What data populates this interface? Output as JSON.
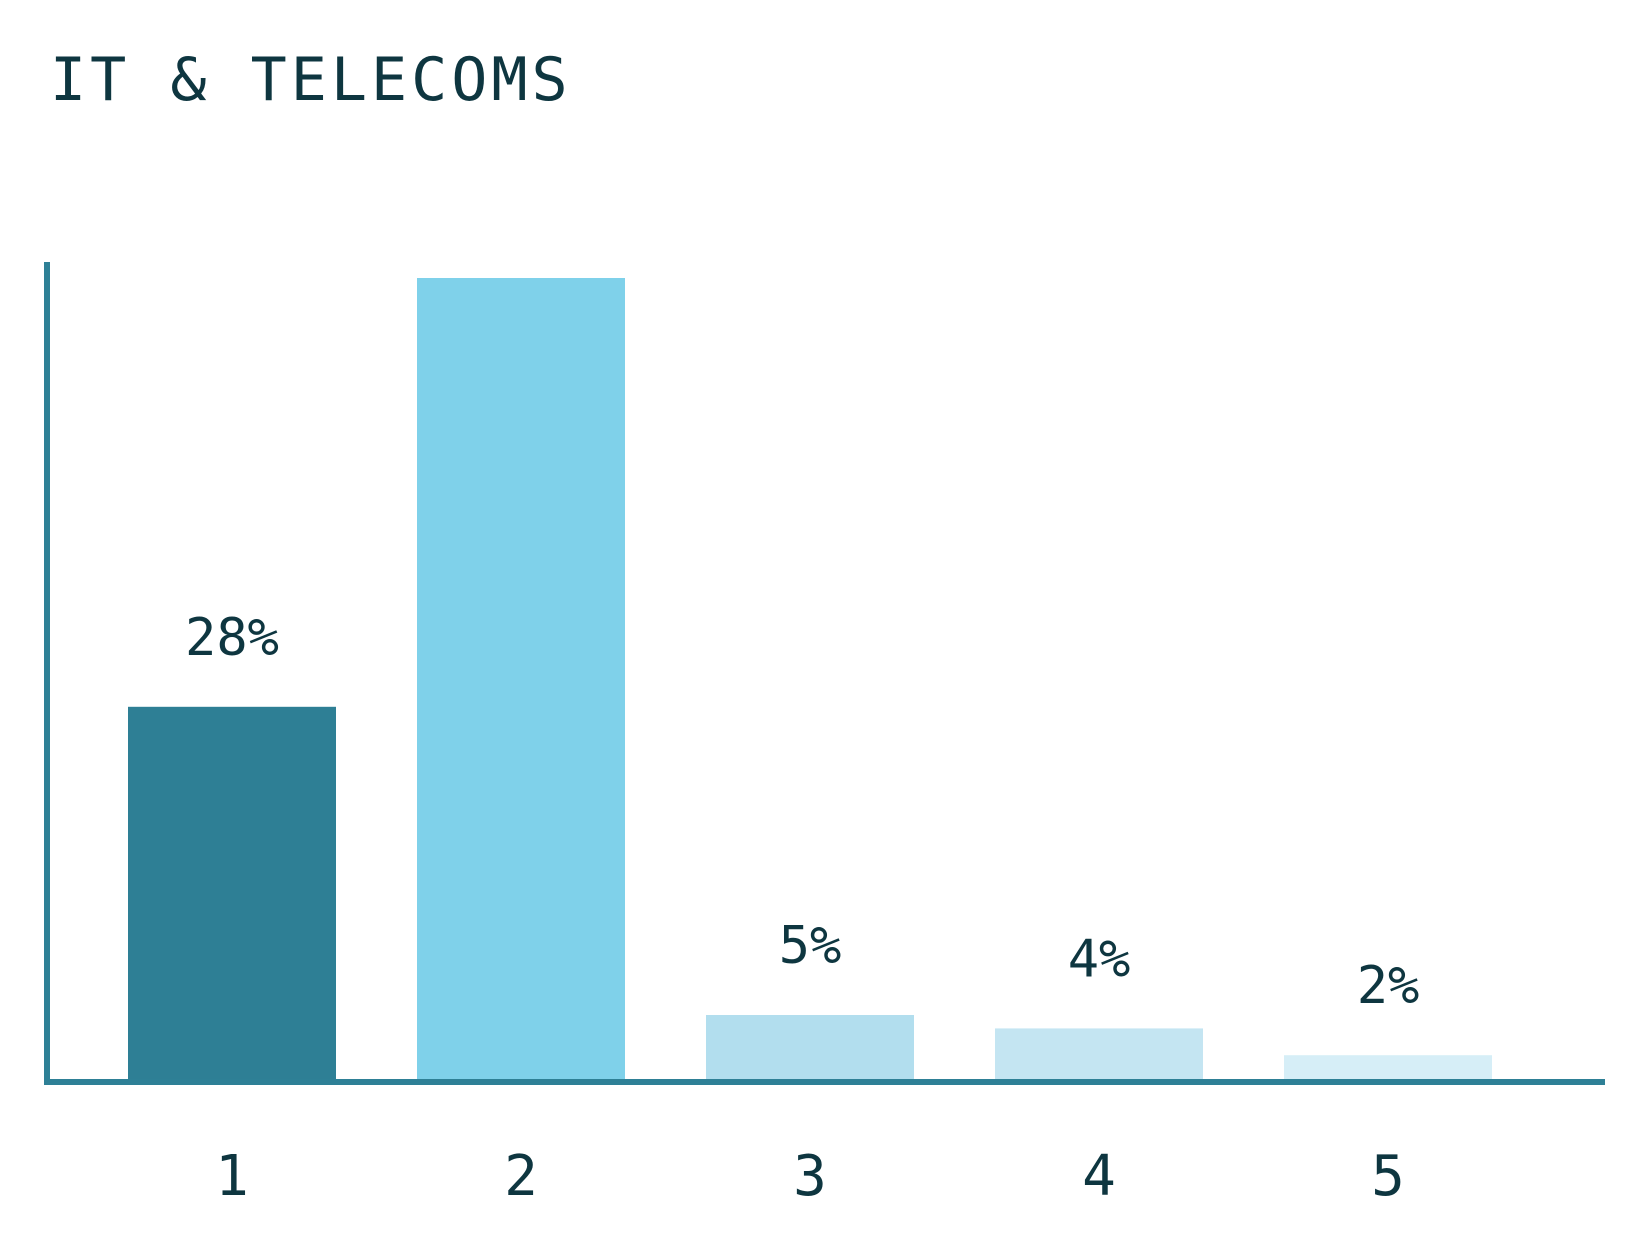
{
  "chart_data": {
    "type": "bar",
    "title": "IT & TELECOMS",
    "categories": [
      "1",
      "2",
      "3",
      "4",
      "5"
    ],
    "values": [
      28,
      60,
      5,
      4,
      2
    ],
    "value_labels": [
      "28%",
      "",
      "5%",
      "4%",
      "2%"
    ],
    "colors": [
      "#2e7f95",
      "#7fd1ea",
      "#b2deee",
      "#c4e5f2",
      "#d6eef7"
    ],
    "axis_color": "#2e8096",
    "text_color": "#0e3640",
    "xlabel": "",
    "ylabel": "",
    "ylim": [
      0,
      60
    ],
    "grid": false,
    "legend": "none"
  }
}
